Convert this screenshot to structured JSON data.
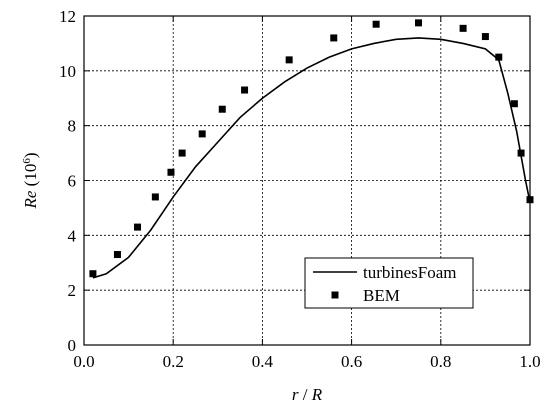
{
  "chart_data": {
    "type": "line",
    "x_label_parts": [
      "r",
      " / ",
      "R"
    ],
    "y_label_parts": [
      "Re",
      " (10",
      "6",
      ")"
    ],
    "xlim": [
      0,
      1
    ],
    "ylim": [
      0,
      12
    ],
    "xticks": [
      {
        "value": 0,
        "label": "0.0"
      },
      {
        "value": 0.2,
        "label": "0.2"
      },
      {
        "value": 0.4,
        "label": "0.4"
      },
      {
        "value": 0.6,
        "label": "0.6"
      },
      {
        "value": 0.8,
        "label": "0.8"
      },
      {
        "value": 1,
        "label": "1.0"
      }
    ],
    "yticks": [
      0,
      2,
      4,
      6,
      8,
      10,
      12
    ],
    "grid": true,
    "legend": "lower right",
    "series": [
      {
        "name": "turbinesFoam",
        "color": "#000000",
        "marker": "line",
        "x": [
          0.02,
          0.05,
          0.1,
          0.15,
          0.2,
          0.25,
          0.3,
          0.35,
          0.4,
          0.45,
          0.5,
          0.55,
          0.6,
          0.65,
          0.7,
          0.75,
          0.8,
          0.85,
          0.9,
          0.93,
          0.95,
          0.97,
          0.99,
          1.0
        ],
        "values": [
          2.45,
          2.6,
          3.2,
          4.2,
          5.4,
          6.5,
          7.4,
          8.3,
          9.0,
          9.6,
          10.1,
          10.5,
          10.8,
          11.0,
          11.15,
          11.2,
          11.15,
          11.0,
          10.8,
          10.4,
          9.2,
          7.8,
          6.0,
          5.2
        ]
      },
      {
        "name": "BEM",
        "color": "#000000",
        "marker": "square",
        "x": [
          0.02,
          0.075,
          0.12,
          0.16,
          0.195,
          0.22,
          0.265,
          0.31,
          0.36,
          0.46,
          0.56,
          0.655,
          0.75,
          0.85,
          0.9,
          0.93,
          0.965,
          0.98,
          1.0
        ],
        "values": [
          2.6,
          3.3,
          4.3,
          5.4,
          6.3,
          7.0,
          7.7,
          8.6,
          9.3,
          10.4,
          11.2,
          11.7,
          11.75,
          11.55,
          11.25,
          10.5,
          8.8,
          7.0,
          5.3
        ]
      }
    ]
  }
}
